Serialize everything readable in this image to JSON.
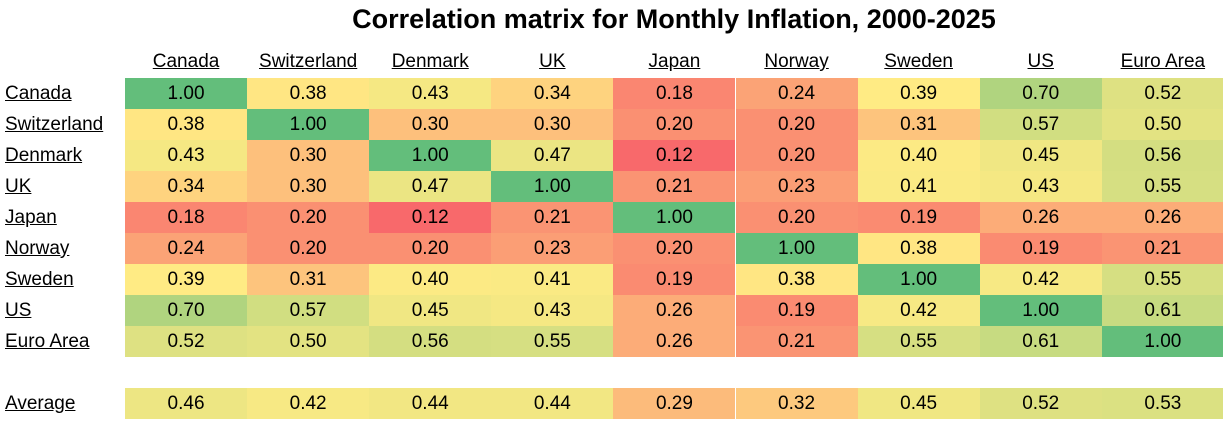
{
  "title": "Correlation matrix for Monthly Inflation, 2000-2025",
  "table": {
    "columns": [
      "Canada",
      "Switzerland",
      "Denmark",
      "UK",
      "Japan",
      "Norway",
      "Sweden",
      "US",
      "Euro Area"
    ],
    "rows": [
      {
        "label": "Canada",
        "cells": [
          "1.00",
          "0.38",
          "0.43",
          "0.34",
          "0.18",
          "0.24",
          "0.39",
          "0.70",
          "0.52"
        ]
      },
      {
        "label": "Switzerland",
        "cells": [
          "0.38",
          "1.00",
          "0.30",
          "0.30",
          "0.20",
          "0.20",
          "0.31",
          "0.57",
          "0.50"
        ]
      },
      {
        "label": "Denmark",
        "cells": [
          "0.43",
          "0.30",
          "1.00",
          "0.47",
          "0.12",
          "0.20",
          "0.40",
          "0.45",
          "0.56"
        ]
      },
      {
        "label": "UK",
        "cells": [
          "0.34",
          "0.30",
          "0.47",
          "1.00",
          "0.21",
          "0.23",
          "0.41",
          "0.43",
          "0.55"
        ]
      },
      {
        "label": "Japan",
        "cells": [
          "0.18",
          "0.20",
          "0.12",
          "0.21",
          "1.00",
          "0.20",
          "0.19",
          "0.26",
          "0.26"
        ]
      },
      {
        "label": "Norway",
        "cells": [
          "0.24",
          "0.20",
          "0.20",
          "0.23",
          "0.20",
          "1.00",
          "0.38",
          "0.19",
          "0.21"
        ]
      },
      {
        "label": "Sweden",
        "cells": [
          "0.39",
          "0.31",
          "0.40",
          "0.41",
          "0.19",
          "0.38",
          "1.00",
          "0.42",
          "0.55"
        ]
      },
      {
        "label": "US",
        "cells": [
          "0.70",
          "0.57",
          "0.45",
          "0.43",
          "0.26",
          "0.19",
          "0.42",
          "1.00",
          "0.61"
        ]
      },
      {
        "label": "Euro Area",
        "cells": [
          "0.52",
          "0.50",
          "0.56",
          "0.55",
          "0.26",
          "0.21",
          "0.55",
          "0.61",
          "1.00"
        ]
      }
    ]
  },
  "summary": {
    "label": "Average",
    "cells": [
      "0.46",
      "0.42",
      "0.44",
      "0.44",
      "0.29",
      "0.32",
      "0.45",
      "0.52",
      "0.53"
    ]
  }
}
